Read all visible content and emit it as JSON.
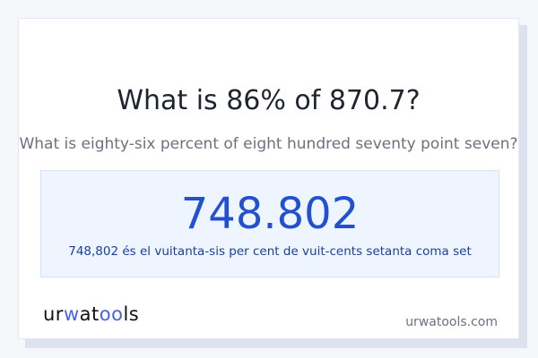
{
  "title": "What is 86% of 870.7?",
  "subtitle": "What is eighty-six percent of eight hundred seventy point seven?",
  "result": {
    "value": "748.802",
    "words": "748,802 és el vuitanta-sis per cent de vuit-cents setanta coma set"
  },
  "footer": {
    "logo": "urwatools",
    "site": "urwatools.com"
  },
  "colors": {
    "accent": "#2150d0",
    "logo_accent": "#4a63e0",
    "result_bg": "#eef5ff"
  }
}
